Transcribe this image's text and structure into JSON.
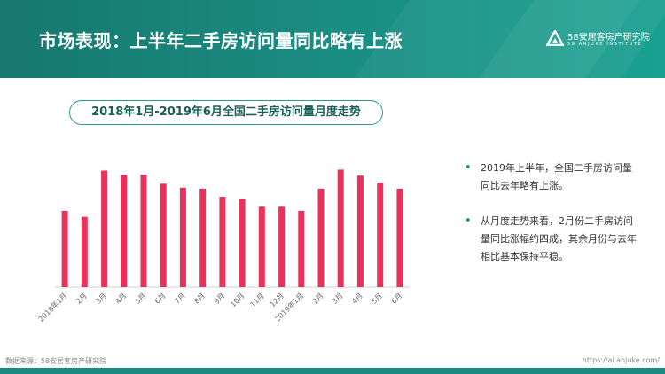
{
  "header": {
    "title": "市场表现：上半年二手房访问量同比略有上涨"
  },
  "logo": {
    "cn": "58安居客房产研究院",
    "en": "58 ANJUKE INSTITUTE"
  },
  "chart_data": {
    "type": "bar",
    "title": "2018年1月-2019年6月全国二手房访问量月度走势",
    "categories": [
      "2018年1月",
      "2月",
      "3月",
      "4月",
      "5月",
      "6月",
      "7月",
      "8月",
      "9月",
      "10月",
      "11月",
      "12月",
      "2019年1月",
      "2月",
      "3月",
      "4月",
      "5月",
      "6月"
    ],
    "values": [
      76,
      70,
      116,
      112,
      112,
      103,
      99,
      98,
      90,
      88,
      80,
      80,
      76,
      98,
      117,
      111,
      104,
      98
    ],
    "color": "#e8315b",
    "grid": false,
    "legend": "none"
  },
  "bullets": [
    {
      "text": "2019年上半年，全国二手房访问量同比去年略有上涨。"
    },
    {
      "text": "从月度走势来看，2月份二手房访问量同比涨幅约四成，其余月份与去年相比基本保持平稳。"
    }
  ],
  "footer": {
    "source": "数据来源：58安居客房产研究院",
    "url": "https://ai.anjuke.com/"
  }
}
